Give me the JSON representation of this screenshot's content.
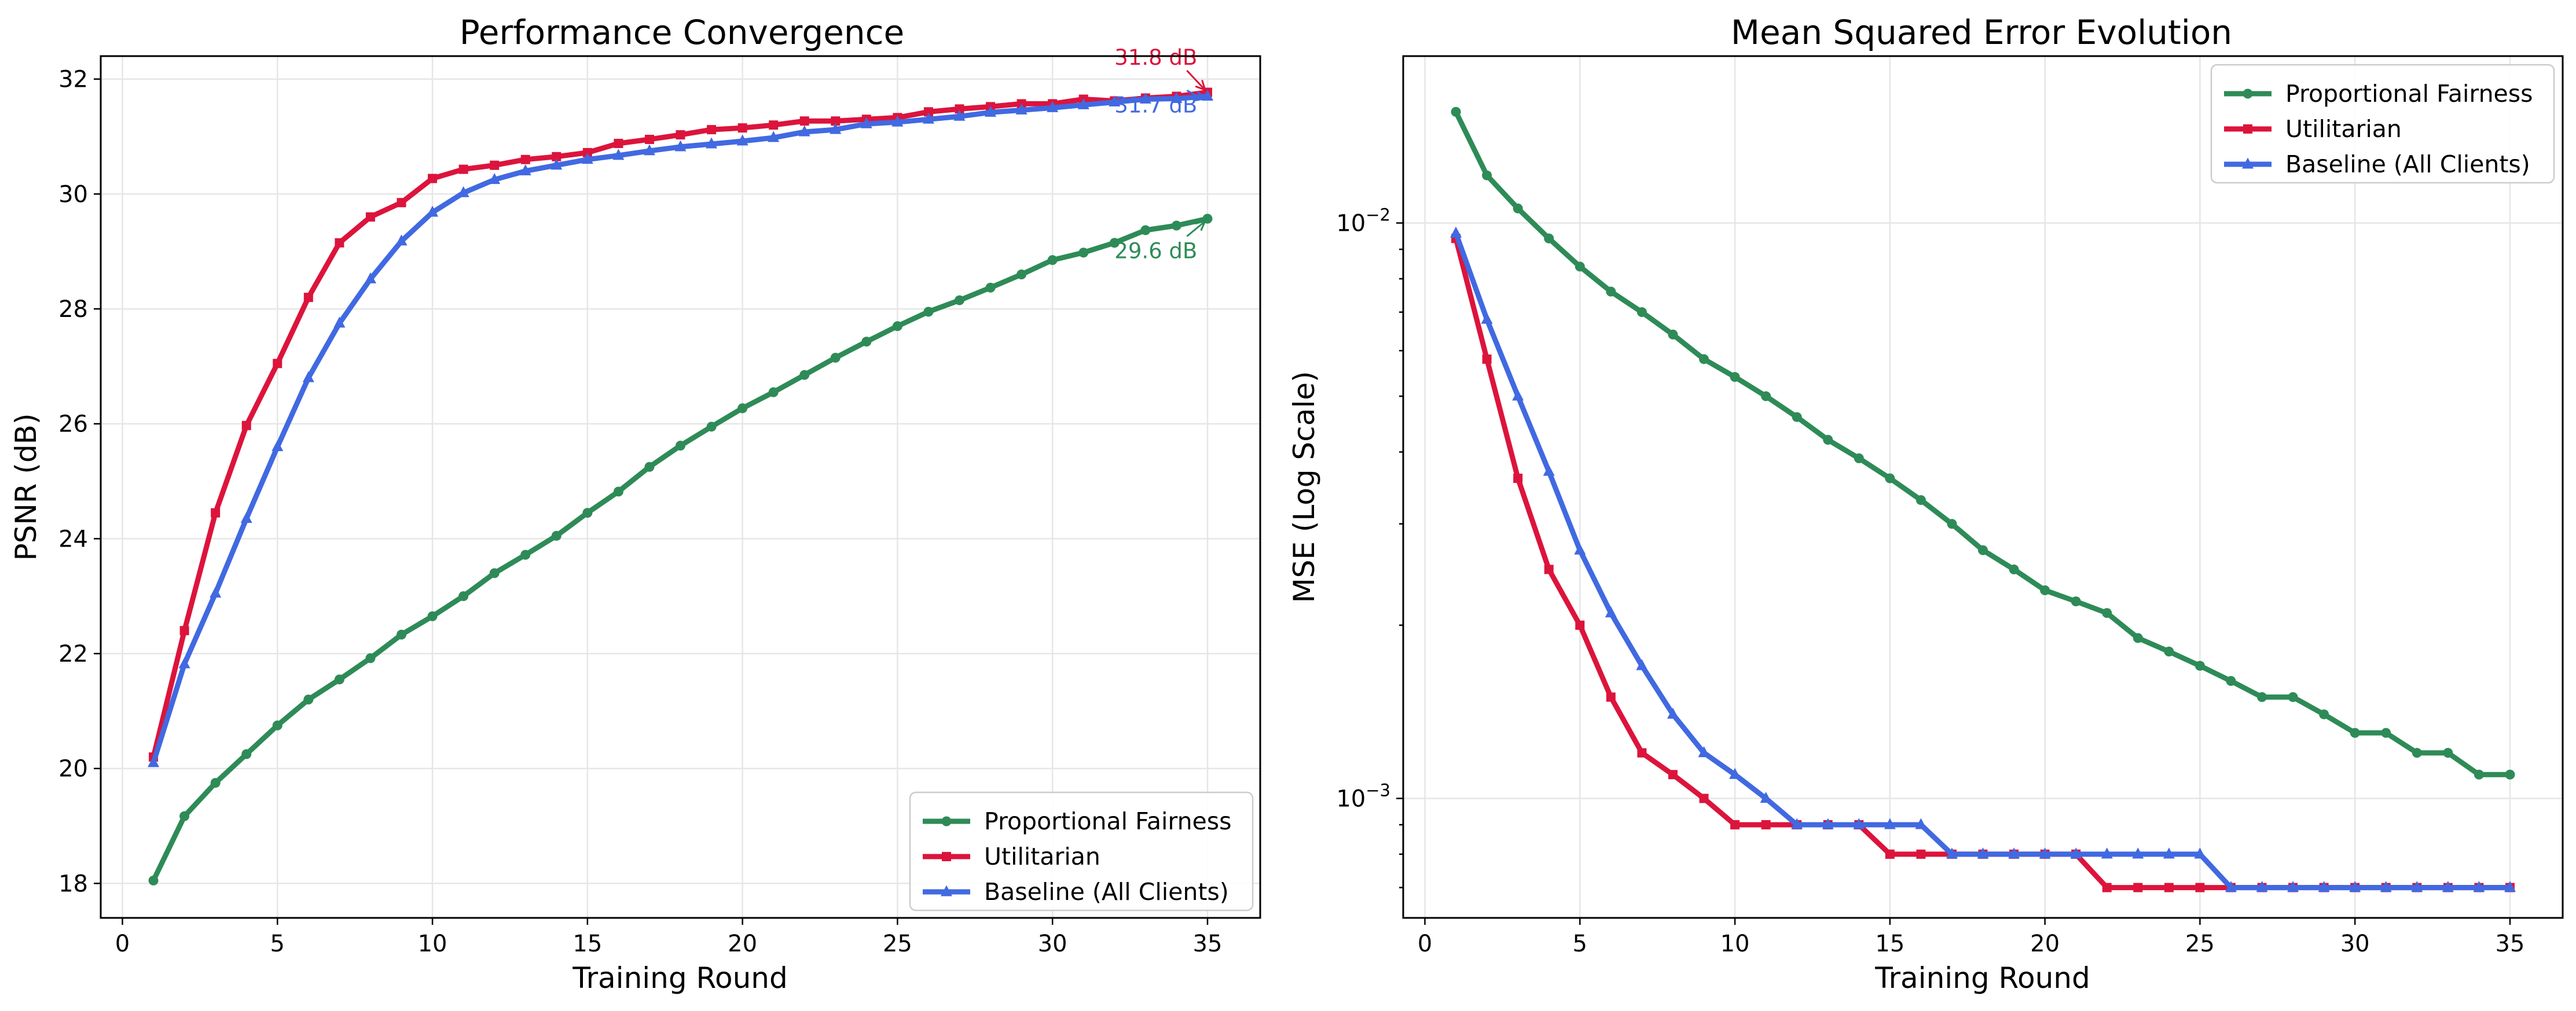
{
  "colors": {
    "proportional_fairness": "#2e8b57",
    "utilitarian": "#dc143c",
    "baseline": "#4169e1"
  },
  "chart_data": [
    {
      "type": "line",
      "title": "Performance Convergence",
      "xlabel": "Training Round",
      "ylabel": "PSNR (dB)",
      "xlim": [
        -0.7,
        36.7
      ],
      "ylim": [
        17.4,
        32.4
      ],
      "xticks": [
        0,
        5,
        10,
        15,
        20,
        25,
        30,
        35
      ],
      "yticks": [
        18,
        20,
        22,
        24,
        26,
        28,
        30,
        32
      ],
      "xtick_labels": [
        "0",
        "5",
        "10",
        "15",
        "20",
        "25",
        "30",
        "35"
      ],
      "ytick_labels": [
        "18",
        "20",
        "22",
        "24",
        "26",
        "28",
        "30",
        "32"
      ],
      "grid": true,
      "legend_placement": "lower-right",
      "x": [
        1,
        2,
        3,
        4,
        5,
        6,
        7,
        8,
        9,
        10,
        11,
        12,
        13,
        14,
        15,
        16,
        17,
        18,
        19,
        20,
        21,
        22,
        23,
        24,
        25,
        26,
        27,
        28,
        29,
        30,
        31,
        32,
        33,
        34,
        35
      ],
      "series": [
        {
          "name": "Proportional Fairness",
          "color": "#2e8b57",
          "marker": "circle",
          "values": [
            18.05,
            19.17,
            19.75,
            20.25,
            20.75,
            21.2,
            21.55,
            21.92,
            22.33,
            22.65,
            23.0,
            23.4,
            23.72,
            24.05,
            24.45,
            24.82,
            25.25,
            25.62,
            25.95,
            26.27,
            26.55,
            26.85,
            27.15,
            27.43,
            27.7,
            27.95,
            28.15,
            28.37,
            28.6,
            28.85,
            28.98,
            29.15,
            29.37,
            29.45,
            29.57
          ]
        },
        {
          "name": "Utilitarian",
          "color": "#dc143c",
          "marker": "square",
          "values": [
            20.2,
            22.4,
            24.45,
            25.97,
            27.05,
            28.2,
            29.15,
            29.6,
            29.85,
            30.27,
            30.43,
            30.5,
            30.6,
            30.65,
            30.72,
            30.88,
            30.95,
            31.03,
            31.12,
            31.15,
            31.2,
            31.27,
            31.27,
            31.3,
            31.33,
            31.43,
            31.48,
            31.52,
            31.57,
            31.57,
            31.65,
            31.62,
            31.67,
            31.7,
            31.77
          ]
        },
        {
          "name": "Baseline (All Clients)",
          "color": "#4169e1",
          "marker": "triangle",
          "values": [
            20.1,
            21.82,
            23.05,
            24.35,
            25.6,
            26.8,
            27.75,
            28.52,
            29.18,
            29.68,
            30.02,
            30.25,
            30.4,
            30.5,
            30.6,
            30.67,
            30.75,
            30.82,
            30.87,
            30.92,
            30.98,
            31.08,
            31.12,
            31.22,
            31.25,
            31.3,
            31.35,
            31.42,
            31.46,
            31.5,
            31.55,
            31.6,
            31.65,
            31.66,
            31.7
          ]
        }
      ],
      "annotations": [
        {
          "text": "31.8 dB",
          "series": "Utilitarian",
          "x": 35,
          "y": 31.77,
          "text_x": 32.0,
          "text_y": 32.25
        },
        {
          "text": "31.7 dB",
          "series": "Baseline (All Clients)",
          "x": 35,
          "y": 31.7,
          "text_x": 32.0,
          "text_y": 31.42
        },
        {
          "text": "29.6 dB",
          "series": "Proportional Fairness",
          "x": 35,
          "y": 29.57,
          "text_x": 32.0,
          "text_y": 28.88
        }
      ]
    },
    {
      "type": "line",
      "title": "Mean Squared Error Evolution",
      "xlabel": "Training Round",
      "ylabel": "MSE (Log Scale)",
      "yscale": "log",
      "xlim": [
        -0.7,
        36.7
      ],
      "ylim": [
        0.00062,
        0.0195
      ],
      "xticks": [
        0,
        5,
        10,
        15,
        20,
        25,
        30,
        35
      ],
      "xtick_labels": [
        "0",
        "5",
        "10",
        "15",
        "20",
        "25",
        "30",
        "35"
      ],
      "yticks": [
        0.001,
        0.01
      ],
      "ytick_labels": [
        {
          "base": "10",
          "exp": "−3"
        },
        {
          "base": "10",
          "exp": "−2"
        }
      ],
      "grid": true,
      "legend_placement": "upper-right",
      "x": [
        1,
        2,
        3,
        4,
        5,
        6,
        7,
        8,
        9,
        10,
        11,
        12,
        13,
        14,
        15,
        16,
        17,
        18,
        19,
        20,
        21,
        22,
        23,
        24,
        25,
        26,
        27,
        28,
        29,
        30,
        31,
        32,
        33,
        34,
        35
      ],
      "series": [
        {
          "name": "Proportional Fairness",
          "color": "#2e8b57",
          "marker": "circle",
          "values": [
            0.0156,
            0.0121,
            0.0106,
            0.0094,
            0.0084,
            0.0076,
            0.007,
            0.0064,
            0.0058,
            0.0054,
            0.005,
            0.0046,
            0.0042,
            0.0039,
            0.0036,
            0.0033,
            0.003,
            0.0027,
            0.0025,
            0.0023,
            0.0022,
            0.0021,
            0.0019,
            0.0018,
            0.0017,
            0.0016,
            0.0015,
            0.0015,
            0.0014,
            0.0013,
            0.0013,
            0.0012,
            0.0012,
            0.0011,
            0.0011
          ]
        },
        {
          "name": "Utilitarian",
          "color": "#dc143c",
          "marker": "square",
          "values": [
            0.0094,
            0.0058,
            0.0036,
            0.0025,
            0.002,
            0.0015,
            0.0012,
            0.0011,
            0.001,
            0.0009,
            0.0009,
            0.0009,
            0.0009,
            0.0009,
            0.0008,
            0.0008,
            0.0008,
            0.0008,
            0.0008,
            0.0008,
            0.0008,
            0.0007,
            0.0007,
            0.0007,
            0.0007,
            0.0007,
            0.0007,
            0.0007,
            0.0007,
            0.0007,
            0.0007,
            0.0007,
            0.0007,
            0.0007,
            0.0007
          ]
        },
        {
          "name": "Baseline (All Clients)",
          "color": "#4169e1",
          "marker": "triangle",
          "values": [
            0.0096,
            0.0068,
            0.005,
            0.0037,
            0.0027,
            0.0021,
            0.0017,
            0.0014,
            0.0012,
            0.0011,
            0.001,
            0.0009,
            0.0009,
            0.0009,
            0.0009,
            0.0009,
            0.0008,
            0.0008,
            0.0008,
            0.0008,
            0.0008,
            0.0008,
            0.0008,
            0.0008,
            0.0008,
            0.0007,
            0.0007,
            0.0007,
            0.0007,
            0.0007,
            0.0007,
            0.0007,
            0.0007,
            0.0007,
            0.0007
          ]
        }
      ]
    }
  ]
}
